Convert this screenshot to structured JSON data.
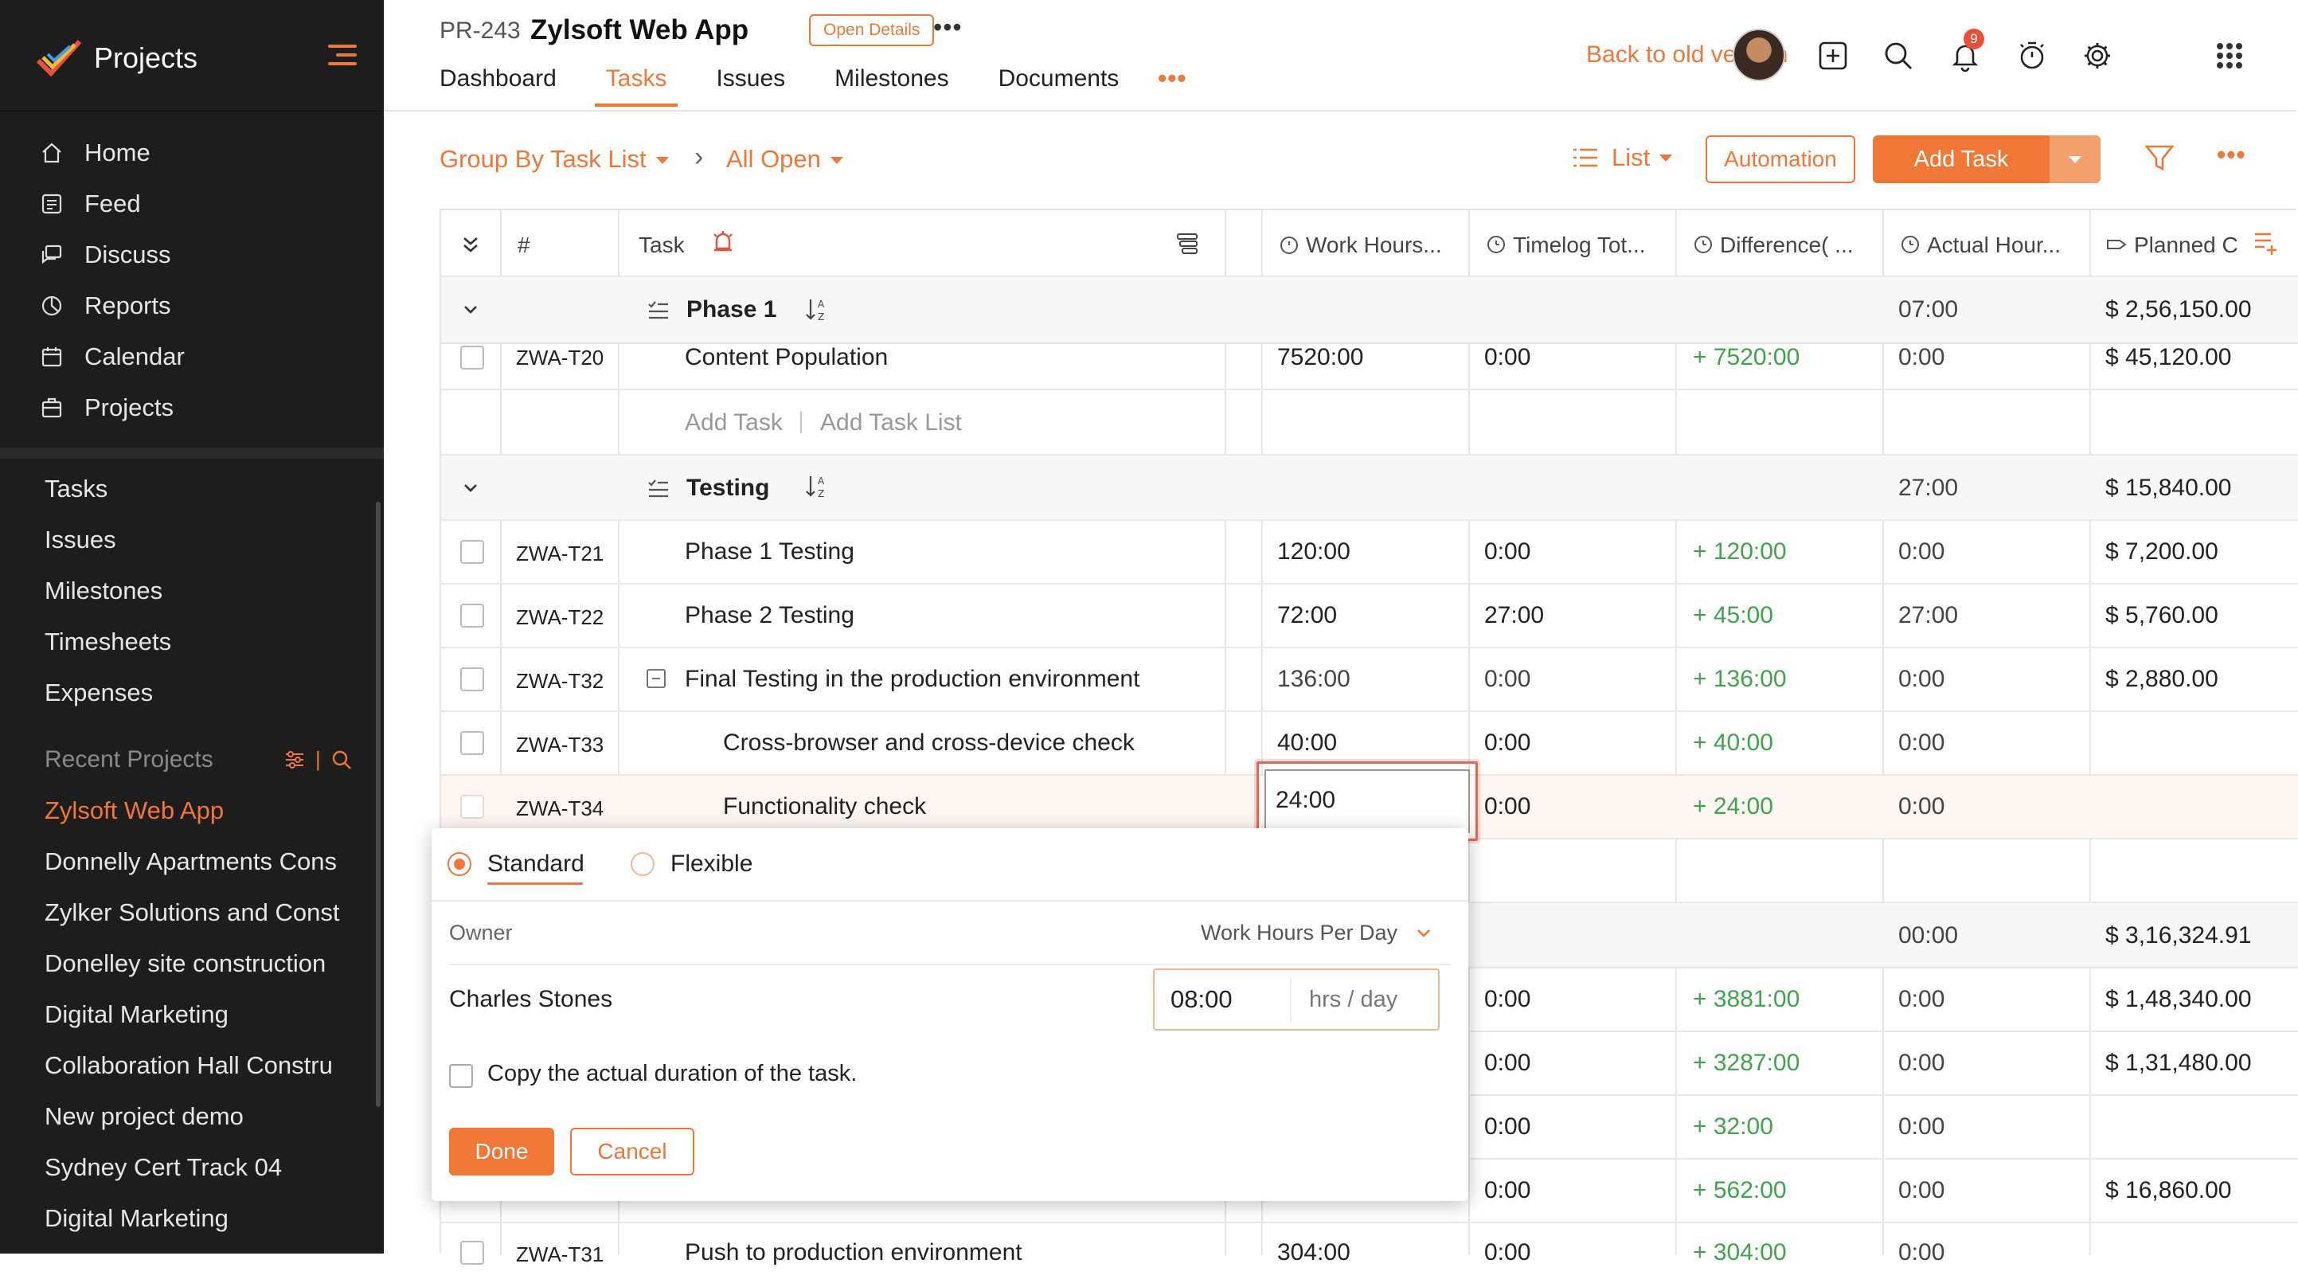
{
  "sidebar": {
    "title": "Projects",
    "main_items": [
      {
        "label": "Home",
        "icon": "home-icon"
      },
      {
        "label": "Feed",
        "icon": "feed-icon"
      },
      {
        "label": "Discuss",
        "icon": "discuss-icon"
      },
      {
        "label": "Reports",
        "icon": "reports-icon"
      },
      {
        "label": "Calendar",
        "icon": "calendar-icon"
      },
      {
        "label": "Projects",
        "icon": "projects-icon"
      }
    ],
    "sub_items": [
      "Tasks",
      "Issues",
      "Milestones",
      "Timesheets",
      "Expenses"
    ],
    "recent_heading": "Recent Projects",
    "recent_projects": [
      "Zylsoft Web App",
      "Donnelly Apartments Cons",
      "Zylker Solutions and Const",
      "Donelley site construction",
      "Digital Marketing",
      "Collaboration Hall Constru",
      "New project demo",
      "Sydney Cert Track 04",
      "Digital Marketing"
    ]
  },
  "header": {
    "project_id": "PR-243",
    "project_name": "Zylsoft Web App",
    "open_details": "Open Details",
    "more": "•••",
    "tabs": [
      {
        "label": "Dashboard"
      },
      {
        "label": "Tasks"
      },
      {
        "label": "Issues"
      },
      {
        "label": "Milestones"
      },
      {
        "label": "Documents"
      }
    ],
    "tabs_more": "•••",
    "back_old": "Back to old version",
    "notification_count": "9"
  },
  "toolbar": {
    "group_by": "Group By Task List",
    "filter_view": "All Open",
    "view": "List",
    "automation": "Automation",
    "add_task": "Add Task",
    "more": "•••"
  },
  "grid": {
    "headers": {
      "num": "#",
      "task": "Task",
      "work_hours": "Work Hours...",
      "timelog": "Timelog Tot...",
      "difference": "Difference( ...",
      "actual": "Actual Hour...",
      "planned": "Planned C"
    },
    "groups": [
      {
        "name": "Phase 1",
        "actual": "07:00",
        "planned": "$ 2,56,150.00"
      },
      {
        "name": "Testing",
        "actual": "27:00",
        "planned": "$ 15,840.00"
      }
    ],
    "phase1_row": {
      "id": "ZWA-T20",
      "task": "Content Population",
      "work": "7520:00",
      "timelog": "0:00",
      "diff": "+ 7520:00",
      "actual": "0:00",
      "planned": "$ 45,120.00"
    },
    "add_task": "Add Task",
    "add_task_list": "Add Task List",
    "testing_rows": [
      {
        "id": "ZWA-T21",
        "task": "Phase 1 Testing",
        "work": "120:00",
        "timelog": "0:00",
        "diff": "+ 120:00",
        "actual": "0:00",
        "planned": "$ 7,200.00"
      },
      {
        "id": "ZWA-T22",
        "task": "Phase 2 Testing",
        "work": "72:00",
        "timelog": "27:00",
        "diff": "+ 45:00",
        "actual": "27:00",
        "planned": "$ 5,760.00"
      },
      {
        "id": "ZWA-T32",
        "task": "Final Testing in the production environment",
        "work": "136:00",
        "timelog": "0:00",
        "diff": "+ 136:00",
        "actual": "0:00",
        "planned": "$ 2,880.00"
      },
      {
        "id": "ZWA-T33",
        "task": "Cross-browser and cross-device check",
        "work": "40:00",
        "timelog": "0:00",
        "diff": "+ 40:00",
        "actual": "0:00",
        "planned": ""
      },
      {
        "id": "ZWA-T34",
        "task": "Functionality check",
        "work": "24:00",
        "timelog": "0:00",
        "diff": "+ 24:00",
        "actual": "0:00",
        "planned": ""
      }
    ],
    "group3": {
      "actual": "00:00",
      "planned": "$ 3,16,324.91"
    },
    "hidden_rows": [
      {
        "timelog": "0:00",
        "diff": "+ 3881:00",
        "actual": "0:00",
        "planned": "$ 1,48,340.00"
      },
      {
        "timelog": "0:00",
        "diff": "+ 3287:00",
        "actual": "0:00",
        "planned": "$ 1,31,480.00"
      },
      {
        "timelog": "0:00",
        "diff": "+ 32:00",
        "actual": "0:00",
        "planned": ""
      },
      {
        "timelog": "0:00",
        "diff": "+ 562:00",
        "actual": "0:00",
        "planned": "$ 16,860.00"
      }
    ],
    "last_row": {
      "id": "ZWA-T31",
      "task": "Push to production environment",
      "work": "304:00",
      "timelog": "0:00",
      "diff": "+ 304:00",
      "actual": "0:00"
    }
  },
  "popup": {
    "option_standard": "Standard",
    "option_flexible": "Flexible",
    "owner_label": "Owner",
    "work_hours_per_day": "Work Hours Per Day",
    "owner_name": "Charles Stones",
    "hours_value": "08:00",
    "hours_unit": "hrs / day",
    "copy_label": "Copy the actual duration of the task.",
    "done": "Done",
    "cancel": "Cancel"
  },
  "colors": {
    "accent": "#f07736",
    "sidebar_bg": "#1d1d1d",
    "positive": "#3fa54a"
  }
}
